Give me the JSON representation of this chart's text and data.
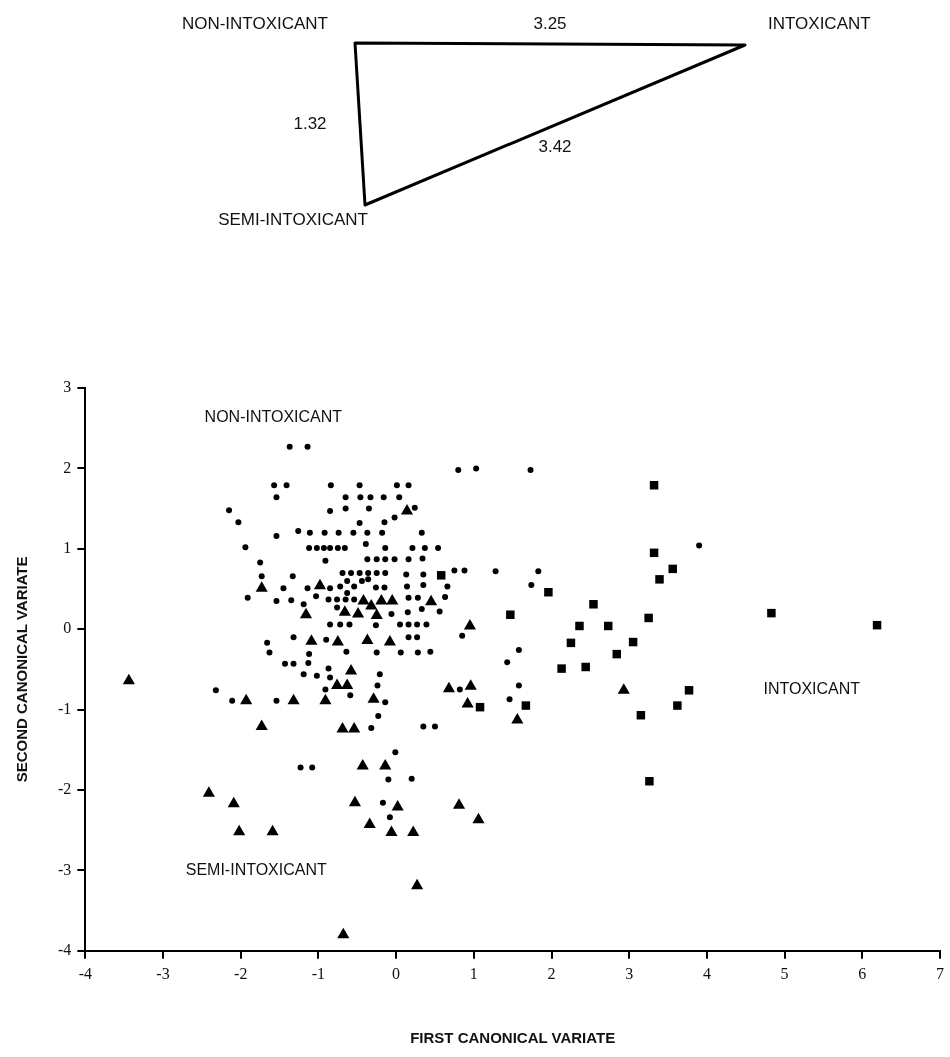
{
  "chart_data": [
    {
      "type": "other",
      "categories": [
        "NON-INTOXICANT",
        "INTOXICANT",
        "SEMI-INTOXICANT"
      ],
      "annotations": [
        "3.25",
        "1.32",
        "3.42"
      ]
    },
    {
      "type": "scatter",
      "xlabel": "FIRST CANONICAL VARIATE",
      "ylabel": "SECOND CANONICAL VARIATE",
      "xlim": [
        -4,
        7
      ],
      "ylim": [
        -4,
        3
      ],
      "xticks": [
        -4,
        -3,
        -2,
        -1,
        0,
        1,
        2,
        3,
        4,
        5,
        6,
        7
      ],
      "yticks": [
        -4,
        -3,
        -2,
        -1,
        0,
        1,
        2,
        3
      ],
      "grid": false,
      "legend": false,
      "annotations": [
        "NON-INTOXICANT",
        "INTOXICANT",
        "SEMI-INTOXICANT"
      ],
      "series": [
        {
          "color": "#000000",
          "marker": "circle",
          "x": [
            -1.37,
            -1.14,
            0.8,
            1.03,
            -1.57,
            -1.41,
            -0.84,
            -0.47,
            0.01,
            0.16,
            -1.54,
            -0.65,
            -0.46,
            -0.33,
            -0.16,
            0.04,
            -2.15,
            -0.85,
            -0.65,
            -0.35,
            0.24,
            -2.03,
            -0.02,
            -0.15,
            -0.47,
            -1.54,
            -1.26,
            -1.11,
            -0.92,
            -0.74,
            -0.55,
            -0.37,
            -0.18,
            0.33,
            -1.94,
            -1.12,
            -1.02,
            -0.93,
            -0.85,
            -0.75,
            -0.66,
            -0.39,
            -0.14,
            0.21,
            0.37,
            0.54,
            -1.75,
            -0.91,
            -0.37,
            -0.25,
            -0.14,
            -0.02,
            0.16,
            0.34,
            -0.69,
            -0.58,
            -0.47,
            -0.36,
            -0.25,
            -0.14,
            0.13,
            0.35,
            -1.73,
            -1.33,
            0.75,
            0.88,
            -0.63,
            -0.44,
            -0.72,
            -0.54,
            -0.36,
            -0.26,
            -0.15,
            0.14,
            0.35,
            0.66,
            -1.45,
            -1.14,
            -0.85,
            -1.91,
            -1.54,
            -1.35,
            -1.19,
            -1.03,
            -0.87,
            -0.76,
            -0.65,
            -0.54,
            -0.63,
            0.16,
            0.28,
            0.63,
            -0.76,
            -0.06,
            0.15,
            0.33,
            0.56,
            -0.85,
            -0.72,
            -0.6,
            -0.26,
            0.05,
            0.16,
            0.27,
            0.39,
            -1.32,
            -0.9,
            0.16,
            0.27,
            0.85,
            -1.66,
            -1.63,
            -1.12,
            -0.64,
            -0.25,
            0.06,
            0.28,
            0.44,
            -1.43,
            -1.32,
            -1.13,
            -0.87,
            -1.19,
            -1.02,
            -0.85,
            -0.21,
            -0.91,
            -0.59,
            -0.24,
            -2.32,
            0.82,
            -2.11,
            -1.54,
            -0.14,
            -0.23,
            -0.32,
            0.35,
            0.5,
            -0.01,
            -1.23,
            -1.08,
            -0.1,
            0.2,
            -0.17,
            -0.08,
            1.73,
            3.9,
            1.28,
            1.83,
            1.74,
            1.58,
            1.43,
            1.58,
            1.46
          ],
          "values": [
            2.27,
            2.27,
            1.98,
            2.0,
            1.79,
            1.79,
            1.79,
            1.79,
            1.79,
            1.79,
            1.64,
            1.64,
            1.64,
            1.64,
            1.64,
            1.64,
            1.48,
            1.47,
            1.5,
            1.5,
            1.51,
            1.33,
            1.39,
            1.33,
            1.32,
            1.16,
            1.22,
            1.2,
            1.2,
            1.2,
            1.2,
            1.2,
            1.2,
            1.2,
            1.02,
            1.01,
            1.01,
            1.01,
            1.01,
            1.01,
            1.01,
            1.06,
            1.01,
            1.01,
            1.01,
            1.01,
            0.83,
            0.85,
            0.87,
            0.87,
            0.87,
            0.87,
            0.87,
            0.88,
            0.7,
            0.7,
            0.7,
            0.7,
            0.7,
            0.7,
            0.68,
            0.68,
            0.66,
            0.66,
            0.73,
            0.73,
            0.6,
            0.6,
            0.53,
            0.53,
            0.62,
            0.52,
            0.52,
            0.53,
            0.55,
            0.53,
            0.51,
            0.51,
            0.51,
            0.39,
            0.35,
            0.36,
            0.31,
            0.41,
            0.37,
            0.37,
            0.37,
            0.37,
            0.45,
            0.39,
            0.39,
            0.4,
            0.27,
            0.19,
            0.21,
            0.25,
            0.22,
            0.06,
            0.06,
            0.06,
            0.05,
            0.06,
            0.06,
            0.06,
            0.06,
            -0.1,
            -0.13,
            -0.1,
            -0.1,
            -0.08,
            -0.17,
            -0.29,
            -0.31,
            -0.28,
            -0.29,
            -0.29,
            -0.29,
            -0.28,
            -0.43,
            -0.43,
            -0.42,
            -0.49,
            -0.56,
            -0.58,
            -0.6,
            -0.56,
            -0.75,
            -0.82,
            -0.7,
            -0.76,
            -0.75,
            -0.89,
            -0.89,
            -0.91,
            -1.08,
            -1.23,
            -1.21,
            -1.21,
            -1.53,
            -1.72,
            -1.72,
            -1.87,
            -1.86,
            -2.16,
            -2.34,
            1.98,
            1.04,
            0.72,
            0.72,
            0.55,
            -0.26,
            -0.41,
            -0.7,
            -0.87
          ]
        },
        {
          "color": "#000000",
          "marker": "triangle",
          "x": [
            0.14,
            -1.73,
            -0.98,
            -0.42,
            -0.19,
            -0.05,
            -0.32,
            0.45,
            -1.16,
            -0.66,
            -0.49,
            -0.25,
            0.95,
            -1.09,
            -0.75,
            -0.37,
            -0.08,
            -0.58,
            -0.76,
            -0.63,
            0.68,
            0.96,
            -1.93,
            -1.32,
            -0.91,
            -0.29,
            0.92,
            -1.73,
            -0.69,
            -0.54,
            -0.43,
            -0.14,
            -2.41,
            -2.09,
            -0.53,
            0.02,
            0.81,
            1.06,
            -0.34,
            -2.02,
            -1.59,
            -0.06,
            0.22,
            0.27,
            -0.68,
            -3.44,
            1.56,
            2.93
          ],
          "values": [
            1.47,
            0.51,
            0.54,
            0.35,
            0.35,
            0.35,
            0.29,
            0.34,
            0.18,
            0.21,
            0.19,
            0.17,
            0.04,
            -0.15,
            -0.16,
            -0.14,
            -0.16,
            -0.52,
            -0.7,
            -0.7,
            -0.74,
            -0.71,
            -0.89,
            -0.89,
            -0.89,
            -0.87,
            -0.93,
            -1.21,
            -1.24,
            -1.24,
            -1.7,
            -1.7,
            -2.04,
            -2.17,
            -2.16,
            -2.21,
            -2.19,
            -2.37,
            -2.43,
            -2.52,
            -2.52,
            -2.53,
            -2.53,
            -3.19,
            -3.8,
            -0.64,
            -1.13,
            -0.76
          ]
        },
        {
          "color": "#000000",
          "marker": "square",
          "x": [
            0.58,
            3.32,
            3.32,
            3.56,
            3.39,
            1.96,
            2.54,
            1.47,
            3.25,
            2.36,
            2.73,
            4.83,
            6.19,
            2.25,
            3.05,
            2.84,
            2.13,
            2.44,
            3.77,
            1.08,
            1.67,
            3.62,
            3.15,
            3.26
          ],
          "values": [
            0.67,
            1.79,
            0.95,
            0.75,
            0.62,
            0.46,
            0.31,
            0.18,
            0.14,
            0.04,
            0.04,
            0.2,
            0.05,
            -0.17,
            -0.16,
            -0.31,
            -0.49,
            -0.47,
            -0.76,
            -0.97,
            -0.95,
            -0.95,
            -1.07,
            -1.89
          ]
        }
      ]
    }
  ]
}
